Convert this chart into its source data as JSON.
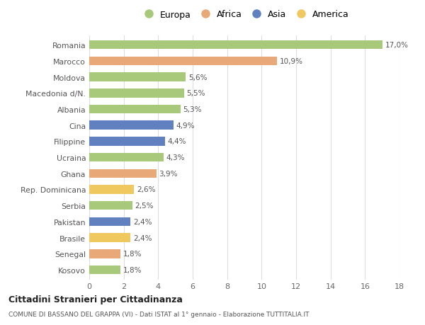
{
  "countries": [
    "Romania",
    "Marocco",
    "Moldova",
    "Macedonia d/N.",
    "Albania",
    "Cina",
    "Filippine",
    "Ucraina",
    "Ghana",
    "Rep. Dominicana",
    "Serbia",
    "Pakistan",
    "Brasile",
    "Senegal",
    "Kosovo"
  ],
  "values": [
    17.0,
    10.9,
    5.6,
    5.5,
    5.3,
    4.9,
    4.4,
    4.3,
    3.9,
    2.6,
    2.5,
    2.4,
    2.4,
    1.8,
    1.8
  ],
  "labels": [
    "17,0%",
    "10,9%",
    "5,6%",
    "5,5%",
    "5,3%",
    "4,9%",
    "4,4%",
    "4,3%",
    "3,9%",
    "2,6%",
    "2,5%",
    "2,4%",
    "2,4%",
    "1,8%",
    "1,8%"
  ],
  "continents": [
    "Europa",
    "Africa",
    "Europa",
    "Europa",
    "Europa",
    "Asia",
    "Asia",
    "Europa",
    "Africa",
    "America",
    "Europa",
    "Asia",
    "America",
    "Africa",
    "Europa"
  ],
  "colors": {
    "Europa": "#a8c97a",
    "Africa": "#e8a878",
    "Asia": "#6080c0",
    "America": "#f0c860"
  },
  "title": "Cittadini Stranieri per Cittadinanza",
  "subtitle": "COMUNE DI BASSANO DEL GRAPPA (VI) - Dati ISTAT al 1° gennaio - Elaborazione TUTTITALIA.IT",
  "xlim": [
    0,
    18
  ],
  "xticks": [
    0,
    2,
    4,
    6,
    8,
    10,
    12,
    14,
    16,
    18
  ],
  "background_color": "#ffffff",
  "grid_color": "#dddddd"
}
